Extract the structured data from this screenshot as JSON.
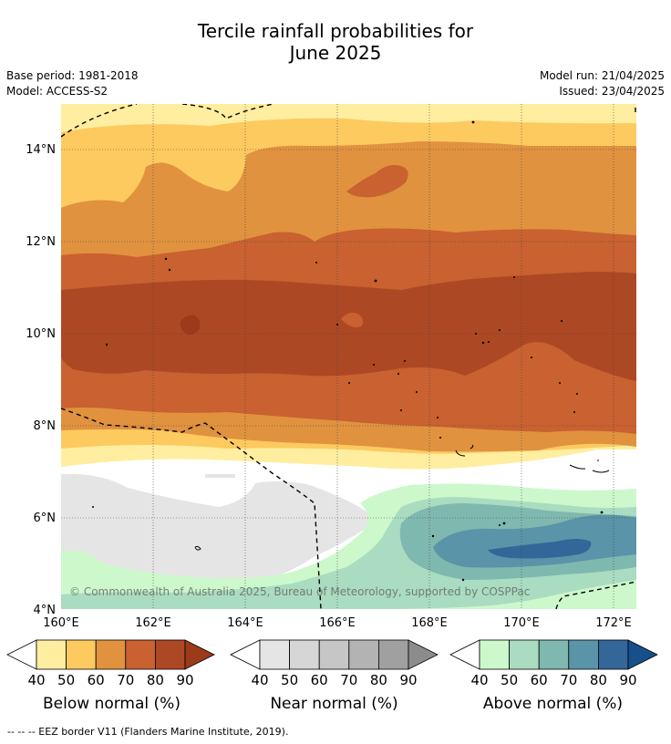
{
  "title_line1": "Tercile rainfall probabilities for",
  "title_line2": "June 2025",
  "base_period": "Base period: 1981-2018",
  "model": "Model: ACCESS-S2",
  "model_run": "Model run: 21/04/2025",
  "issued": "Issued: 23/04/2025",
  "copyright": "© Commonwealth of Australia 2025, Bureau of Meteorology, supported by COSPPac",
  "lat_labels": [
    "14°N",
    "12°N",
    "10°N",
    "8°N",
    "6°N",
    "4°N"
  ],
  "lon_labels": [
    "160°E",
    "162°E",
    "164°E",
    "166°E",
    "168°E",
    "170°E",
    "172°E"
  ],
  "colorbars": [
    {
      "title": "Below normal (%)",
      "ticks": [
        "40",
        "50",
        "60",
        "70",
        "80",
        "90"
      ],
      "colors": [
        "#ffeea0",
        "#fdca60",
        "#e0923f",
        "#c96130",
        "#ad4824",
        "#9c3a1a"
      ]
    },
    {
      "title": "Near normal (%)",
      "ticks": [
        "40",
        "50",
        "60",
        "70",
        "80",
        "90"
      ],
      "colors": [
        "#e5e5e5",
        "#d6d6d6",
        "#c6c6c6",
        "#b3b3b3",
        "#a0a0a0",
        "#8c8c8c"
      ]
    },
    {
      "title": "Above normal (%)",
      "ticks": [
        "40",
        "50",
        "60",
        "70",
        "80",
        "90"
      ],
      "colors": [
        "#ccf8cc",
        "#a9dcc0",
        "#7fb8ae",
        "#5a94a8",
        "#336699",
        "#174f8a"
      ]
    }
  ],
  "footnote": "--  --  -- EEZ border V11 (Flanders Marine Institute, 2019)."
}
